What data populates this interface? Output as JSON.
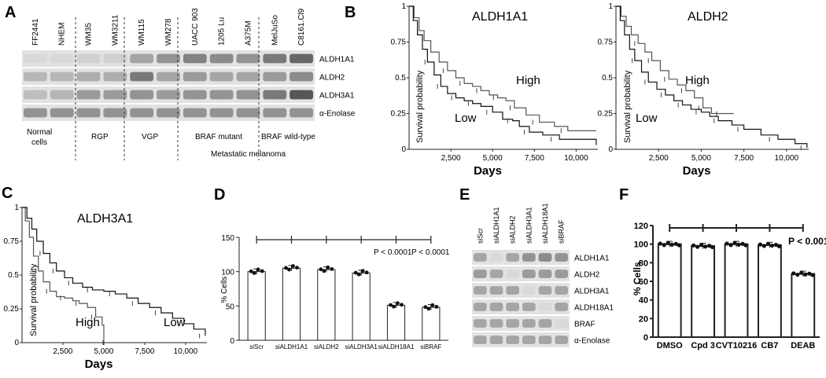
{
  "panel_a": {
    "letter": "A",
    "lanes": [
      "FF2441",
      "NHEM",
      "WM35",
      "WM3211",
      "WM115",
      "WM278",
      "UACC 903",
      "1205 Lu",
      "A375M",
      "MelJuSo",
      "C8161.Cl9"
    ],
    "bands": [
      "ALDH1A1",
      "ALDH2",
      "ALDH3A1",
      "α-Enolase"
    ],
    "groups": [
      "Normal",
      "cells",
      "RGP",
      "VGP",
      "BRAF mutant",
      "BRAF wild-type"
    ],
    "footer": "Metastatic melanoma"
  },
  "panel_b": {
    "letter": "B"
  },
  "panel_c": {
    "letter": "C"
  },
  "panel_d": {
    "letter": "D"
  },
  "panel_e": {
    "letter": "E",
    "lanes": [
      "siScr",
      "siALDH1A1",
      "siALDH2",
      "siALDH3A1",
      "siALDH18A1",
      "siBRAF"
    ],
    "bands": [
      "ALDH1A1",
      "ALDH2",
      "ALDH3A1",
      "ALDH18A1",
      "BRAF",
      "α-Enolase"
    ]
  },
  "panel_f": {
    "letter": "F"
  },
  "chart_data": [
    {
      "type": "line",
      "title": "ALDH1A1",
      "xlabel": "Days",
      "ylabel": "Survival probability",
      "xticks": [
        "2,500",
        "5,000",
        "7,500",
        "10,000"
      ],
      "yticks": [
        "0",
        "0.25",
        "0.5",
        "0.75",
        "1"
      ],
      "xlim": [
        0,
        11300
      ],
      "ylim": [
        0,
        1
      ],
      "series": [
        {
          "name": "High",
          "x": [
            0,
            300,
            600,
            900,
            1300,
            1800,
            2300,
            2800,
            3300,
            3800,
            4300,
            4800,
            5300,
            5800,
            6300,
            7000,
            7800,
            8700,
            9500,
            11200
          ],
          "y": [
            1,
            0.92,
            0.83,
            0.76,
            0.68,
            0.61,
            0.55,
            0.5,
            0.46,
            0.44,
            0.41,
            0.38,
            0.36,
            0.34,
            0.29,
            0.24,
            0.19,
            0.16,
            0.13,
            0.13
          ]
        },
        {
          "name": "Low",
          "x": [
            0,
            250,
            500,
            800,
            1100,
            1500,
            1900,
            2300,
            2800,
            3300,
            3800,
            4300,
            5000,
            5600,
            6200,
            6600,
            7200,
            8000,
            9000,
            11200
          ],
          "y": [
            1,
            0.9,
            0.8,
            0.7,
            0.61,
            0.52,
            0.44,
            0.39,
            0.36,
            0.34,
            0.32,
            0.3,
            0.26,
            0.21,
            0.2,
            0.16,
            0.12,
            0.1,
            0.07,
            0.03
          ]
        }
      ]
    },
    {
      "type": "line",
      "title": "ALDH2",
      "xlabel": "Days",
      "ylabel": "Survival probability",
      "xticks": [
        "2,500",
        "5,000",
        "7,500",
        "10,000"
      ],
      "yticks": [
        "0",
        "0.25",
        "0.5",
        "0.75",
        "1"
      ],
      "xlim": [
        0,
        11300
      ],
      "ylim": [
        0,
        1
      ],
      "series": [
        {
          "name": "High",
          "x": [
            0,
            300,
            600,
            900,
            1300,
            1700,
            2100,
            2600,
            3100,
            3600,
            4100,
            4600,
            5100,
            5600,
            6200,
            6900
          ],
          "y": [
            1,
            0.93,
            0.86,
            0.8,
            0.74,
            0.68,
            0.62,
            0.55,
            0.49,
            0.45,
            0.41,
            0.36,
            0.29,
            0.25,
            0.25,
            0.25
          ]
        },
        {
          "name": "Low",
          "x": [
            0,
            250,
            500,
            800,
            1100,
            1500,
            1900,
            2400,
            2900,
            3400,
            3900,
            4400,
            5000,
            5500,
            6000,
            6800,
            7500,
            8500,
            9500,
            10500,
            11200
          ],
          "y": [
            1,
            0.9,
            0.8,
            0.7,
            0.62,
            0.54,
            0.47,
            0.42,
            0.38,
            0.34,
            0.31,
            0.28,
            0.26,
            0.23,
            0.2,
            0.17,
            0.14,
            0.1,
            0.07,
            0.04,
            0.01
          ]
        }
      ]
    },
    {
      "type": "line",
      "title": "ALDH3A1",
      "xlabel": "Days",
      "ylabel": "Survival probability",
      "xticks": [
        "2,500",
        "5,000",
        "7,500",
        "10,000"
      ],
      "yticks": [
        "0",
        "0.25",
        "0.5",
        "0.75",
        "1"
      ],
      "xlim": [
        0,
        11300
      ],
      "ylim": [
        0,
        1
      ],
      "series": [
        {
          "name": "High",
          "x": [
            0,
            200,
            450,
            700,
            1000,
            1300,
            1700,
            2100,
            2600,
            3100,
            3500,
            4000,
            4500,
            4900,
            5000
          ],
          "y": [
            1,
            0.9,
            0.78,
            0.64,
            0.53,
            0.45,
            0.38,
            0.34,
            0.33,
            0.31,
            0.29,
            0.26,
            0.19,
            0.13,
            0
          ]
        },
        {
          "name": "Low",
          "x": [
            0,
            300,
            600,
            900,
            1300,
            1700,
            2100,
            2600,
            3100,
            3700,
            4300,
            5000,
            5700,
            6400,
            7100,
            7800,
            8500,
            9200,
            9900,
            10500,
            11200
          ],
          "y": [
            1,
            0.92,
            0.84,
            0.75,
            0.66,
            0.59,
            0.53,
            0.48,
            0.44,
            0.41,
            0.39,
            0.38,
            0.36,
            0.33,
            0.29,
            0.26,
            0.22,
            0.18,
            0.14,
            0.1,
            0.05
          ]
        }
      ]
    },
    {
      "type": "bar",
      "ylabel": "% Cells",
      "yticks": [
        "0",
        "50",
        "100",
        "150"
      ],
      "ylim": [
        0,
        150
      ],
      "categories": [
        "siScr",
        "siALDH1A1",
        "siALDH2",
        "siALDH3A1",
        "siALDH18A1",
        "siBRAF"
      ],
      "values": [
        100,
        105,
        103,
        98,
        51,
        48
      ],
      "annotations": [
        "P < 0.0001",
        "P < 0.0001"
      ]
    },
    {
      "type": "bar",
      "ylabel": "% Cells",
      "yticks": [
        "0",
        "20",
        "40",
        "60",
        "80",
        "100",
        "120"
      ],
      "ylim": [
        0,
        120
      ],
      "categories": [
        "DMSO",
        "Cpd 3",
        "CVT10216",
        "CB7",
        "DEAB"
      ],
      "values": [
        100,
        98,
        100,
        99,
        68
      ],
      "annotations": [
        "P < 0.001"
      ]
    }
  ]
}
